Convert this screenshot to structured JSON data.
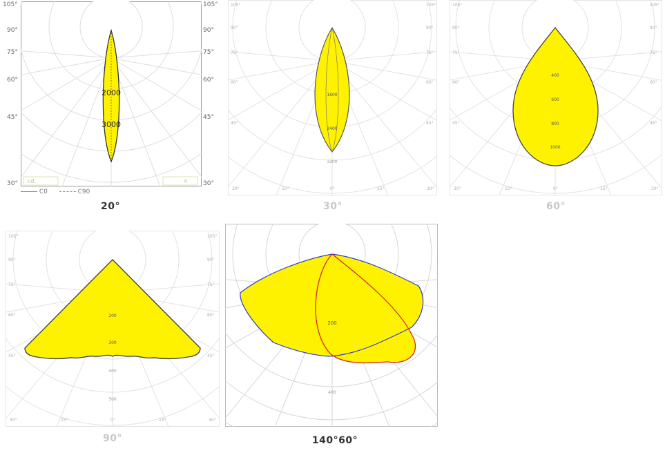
{
  "colors": {
    "fill": "#fff200",
    "outline": "#333333",
    "blue_curve": "#2a3bd6",
    "red_curve": "#d61a1a",
    "grid": "#dddddd"
  },
  "panels": [
    {
      "id": "p20",
      "caption": "20°",
      "angle_labels_left": [
        "105°",
        "90°",
        "75°",
        "60°",
        "45°",
        "30°"
      ],
      "angle_labels_right": [
        "105°",
        "90°",
        "75°",
        "60°",
        "45°",
        "30°"
      ],
      "value_labels": [
        "2000",
        "3000"
      ],
      "box_labels": [
        "cd.",
        "4"
      ],
      "legend": {
        "c0": "C0",
        "c90": "C90"
      }
    },
    {
      "id": "p30",
      "caption": "30°",
      "angle_labels_left": [
        "105°",
        "90°",
        "75°",
        "60°",
        "45°",
        "30°"
      ],
      "angle_labels_right": [
        "105°",
        "90°",
        "75°",
        "60°",
        "45°",
        "30°"
      ],
      "bottom_labels": [
        "30°",
        "15°",
        "0°",
        "15°",
        "30°"
      ],
      "value_labels": [
        "1600",
        "2400",
        "3200"
      ]
    },
    {
      "id": "p60",
      "caption": "60°",
      "angle_labels_left": [
        "105°",
        "90°",
        "75°",
        "60°",
        "45°",
        "30°"
      ],
      "angle_labels_right": [
        "105°",
        "90°",
        "75°",
        "60°",
        "45°",
        "30°"
      ],
      "bottom_labels": [
        "30°",
        "15°",
        "0°",
        "15°",
        "30°"
      ],
      "value_labels": [
        "400",
        "600",
        "800",
        "1000"
      ]
    },
    {
      "id": "p90",
      "caption": "90°",
      "angle_labels_left": [
        "105°",
        "90°",
        "75°",
        "60°",
        "45°",
        "30°"
      ],
      "angle_labels_right": [
        "105°",
        "90°",
        "75°",
        "60°",
        "45°",
        "30°"
      ],
      "bottom_labels": [
        "30°",
        "15°",
        "0°",
        "15°",
        "30°"
      ],
      "value_labels": [
        "200",
        "300",
        "400",
        "500"
      ]
    },
    {
      "id": "p140",
      "caption": "140°60°",
      "value_labels": [
        "200",
        "400"
      ]
    }
  ]
}
